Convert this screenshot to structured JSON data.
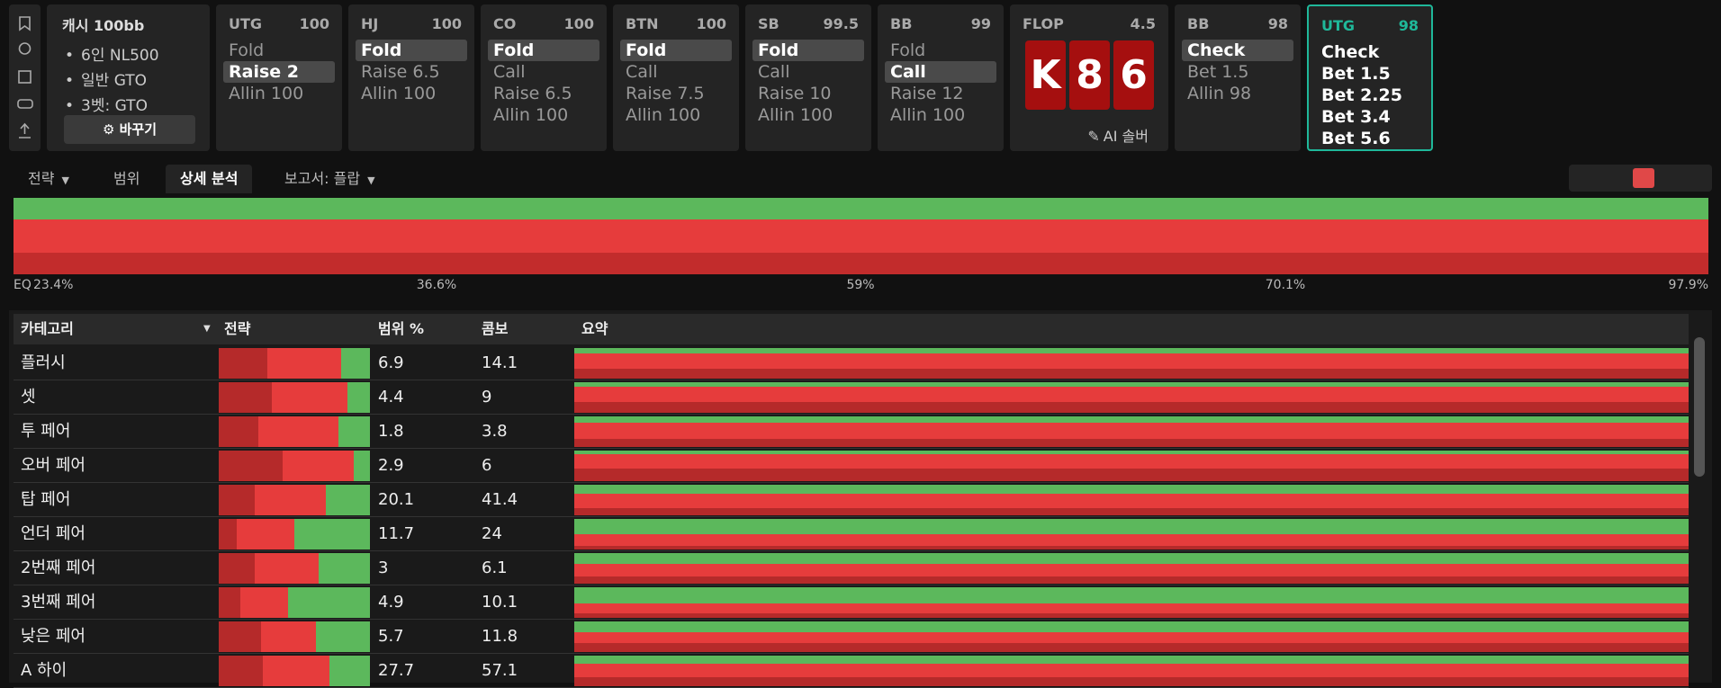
{
  "info": {
    "title": "캐시",
    "stack": "100bb",
    "items": [
      "6인 NL500",
      "일반 GTO",
      "3벳: GTO"
    ],
    "button": "바꾸기"
  },
  "positions": [
    {
      "name": "UTG",
      "stack": "100",
      "actions": [
        "Fold",
        "Raise 2",
        "Allin 100"
      ],
      "selected": 1
    },
    {
      "name": "HJ",
      "stack": "100",
      "actions": [
        "Fold",
        "Raise 6.5",
        "Allin 100"
      ],
      "selected": 0
    },
    {
      "name": "CO",
      "stack": "100",
      "actions": [
        "Fold",
        "Call",
        "Raise 6.5",
        "Allin 100"
      ],
      "selected": 0
    },
    {
      "name": "BTN",
      "stack": "100",
      "actions": [
        "Fold",
        "Call",
        "Raise 7.5",
        "Allin 100"
      ],
      "selected": 0
    },
    {
      "name": "SB",
      "stack": "99.5",
      "actions": [
        "Fold",
        "Call",
        "Raise 10",
        "Allin 100"
      ],
      "selected": 0
    },
    {
      "name": "BB",
      "stack": "99",
      "actions": [
        "Fold",
        "Call",
        "Raise 12",
        "Allin 100"
      ],
      "selected": 1
    }
  ],
  "flop": {
    "name": "FLOP",
    "pot": "4.5",
    "cards": [
      "K",
      "8",
      "6"
    ],
    "button": "AI 솔버"
  },
  "next_positions": [
    {
      "name": "BB",
      "stack": "98",
      "actions": [
        "Check",
        "Bet 1.5",
        "Allin 98"
      ],
      "selected": 0
    },
    {
      "name": "UTG",
      "stack": "98",
      "actions": [
        "Check",
        "Bet 1.5",
        "Bet 2.25",
        "Bet 3.4",
        "Bet 5.6"
      ],
      "active": true
    }
  ],
  "tabs": [
    "전략",
    "범위",
    "상세 분석",
    "보고서: 플랍"
  ],
  "active_tab": 2,
  "equity": {
    "prefix": "EQ",
    "labels": [
      "23.4%",
      "36.6%",
      "59%",
      "70.1%",
      "97.9%"
    ]
  },
  "table": {
    "headers": [
      "카테고리",
      "전략",
      "범위 %",
      "콤보",
      "요약"
    ],
    "rows": [
      {
        "category": "플러시",
        "strategy": [
          32,
          49,
          19
        ],
        "range": 6.9,
        "combos": 14.1
      },
      {
        "category": "셋",
        "strategy": [
          35,
          50,
          15
        ],
        "range": 4.4,
        "combos": 9
      },
      {
        "category": "투 페어",
        "strategy": [
          26,
          53,
          21
        ],
        "range": 1.8,
        "combos": 3.8
      },
      {
        "category": "오버 페어",
        "strategy": [
          42,
          47,
          11
        ],
        "range": 2.9,
        "combos": 6
      },
      {
        "category": "탑 페어",
        "strategy": [
          24,
          47,
          29
        ],
        "range": 20.1,
        "combos": 41.4
      },
      {
        "category": "언더 페어",
        "strategy": [
          12,
          38,
          50
        ],
        "range": 11.7,
        "combos": 24
      },
      {
        "category": "2번째 페어",
        "strategy": [
          24,
          42,
          34
        ],
        "range": 3,
        "combos": 6.1
      },
      {
        "category": "3번째 페어",
        "strategy": [
          14,
          32,
          54
        ],
        "range": 4.9,
        "combos": 10.1
      },
      {
        "category": "낮은 페어",
        "strategy": [
          28,
          36,
          36
        ],
        "range": 5.7,
        "combos": 11.8
      },
      {
        "category": "A 하이",
        "strategy": [
          29,
          44,
          27
        ],
        "range": 27.7,
        "combos": 57.1
      }
    ]
  }
}
